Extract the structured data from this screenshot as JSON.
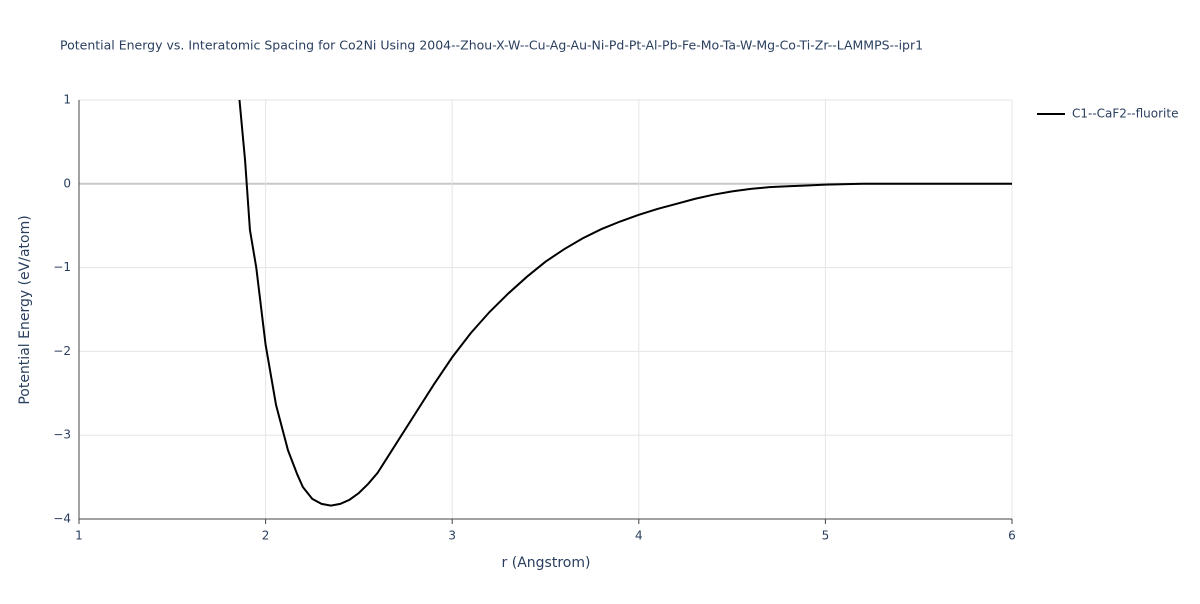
{
  "chart_data": {
    "type": "line",
    "title": "Potential Energy vs. Interatomic Spacing for Co2Ni Using 2004--Zhou-X-W--Cu-Ag-Au-Ni-Pd-Pt-Al-Pb-Fe-Mo-Ta-W-Mg-Co-Ti-Zr--LAMMPS--ipr1",
    "xlabel": "r (Angstrom)",
    "ylabel": "Potential Energy (eV/atom)",
    "x": [
      1.86,
      1.89,
      1.916,
      1.95,
      2.0,
      2.056,
      2.12,
      2.17,
      2.2,
      2.25,
      2.3,
      2.35,
      2.4,
      2.45,
      2.5,
      2.55,
      2.6,
      2.7,
      2.8,
      2.9,
      3.0,
      3.1,
      3.2,
      3.3,
      3.4,
      3.5,
      3.6,
      3.7,
      3.8,
      3.9,
      4.0,
      4.1,
      4.2,
      4.3,
      4.4,
      4.5,
      4.6,
      4.7,
      4.8,
      4.9,
      5.0,
      5.2,
      5.5,
      6.0
    ],
    "series": [
      {
        "name": "C1--CaF2--fluorite",
        "color": "#000000",
        "values": [
          1.0,
          0.28,
          -0.55,
          -1.0,
          -1.92,
          -2.64,
          -3.18,
          -3.47,
          -3.62,
          -3.76,
          -3.82,
          -3.84,
          -3.82,
          -3.77,
          -3.69,
          -3.58,
          -3.45,
          -3.1,
          -2.75,
          -2.4,
          -2.07,
          -1.78,
          -1.53,
          -1.31,
          -1.11,
          -0.93,
          -0.78,
          -0.65,
          -0.54,
          -0.45,
          -0.37,
          -0.3,
          -0.24,
          -0.18,
          -0.13,
          -0.09,
          -0.06,
          -0.04,
          -0.03,
          -0.02,
          -0.01,
          0,
          0,
          0
        ]
      }
    ],
    "xlim": [
      1,
      6
    ],
    "xticks": [
      1,
      2,
      3,
      4,
      5,
      6
    ],
    "ylim": [
      -4,
      1
    ],
    "yticks": [
      {
        "value": -4,
        "label": "−4"
      },
      {
        "value": -3,
        "label": "−3"
      },
      {
        "value": -2,
        "label": "−2"
      },
      {
        "value": -1,
        "label": "−1"
      },
      0,
      1
    ],
    "grid": true
  }
}
